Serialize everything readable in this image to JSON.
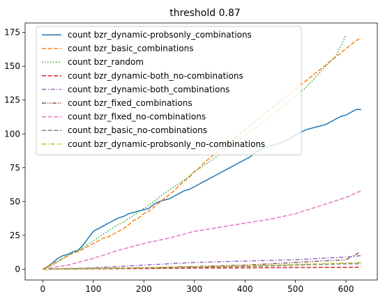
{
  "chart_data": {
    "type": "line",
    "title": "threshold 0.87",
    "xlabel": "",
    "ylabel": "",
    "xlim": [
      -35,
      662
    ],
    "ylim": [
      -8,
      182
    ],
    "xticks": [
      0,
      100,
      200,
      300,
      400,
      500,
      600
    ],
    "yticks": [
      0,
      25,
      50,
      75,
      100,
      125,
      150,
      175
    ],
    "grid": false,
    "legend_position": "top-left",
    "series": [
      {
        "name": "count bzr_dynamic-probsonly_combinations",
        "color": "#1f77b4",
        "dash": "solid",
        "points": [
          [
            0,
            0
          ],
          [
            10,
            2
          ],
          [
            20,
            5
          ],
          [
            30,
            8
          ],
          [
            40,
            10
          ],
          [
            50,
            11
          ],
          [
            60,
            13
          ],
          [
            70,
            14
          ],
          [
            80,
            18
          ],
          [
            90,
            23
          ],
          [
            100,
            28
          ],
          [
            110,
            30
          ],
          [
            120,
            32
          ],
          [
            130,
            34
          ],
          [
            140,
            36
          ],
          [
            150,
            38
          ],
          [
            160,
            39
          ],
          [
            170,
            41
          ],
          [
            180,
            42
          ],
          [
            190,
            43
          ],
          [
            200,
            44
          ],
          [
            210,
            45
          ],
          [
            220,
            48
          ],
          [
            230,
            50
          ],
          [
            240,
            51
          ],
          [
            250,
            52
          ],
          [
            260,
            54
          ],
          [
            270,
            56
          ],
          [
            280,
            58
          ],
          [
            290,
            59
          ],
          [
            300,
            61
          ],
          [
            310,
            63
          ],
          [
            320,
            65
          ],
          [
            330,
            67
          ],
          [
            340,
            69
          ],
          [
            350,
            71
          ],
          [
            360,
            73
          ],
          [
            370,
            75
          ],
          [
            380,
            77
          ],
          [
            390,
            79
          ],
          [
            400,
            81
          ],
          [
            410,
            83
          ],
          [
            420,
            86
          ],
          [
            430,
            88
          ],
          [
            440,
            90
          ],
          [
            450,
            91
          ],
          [
            460,
            92
          ],
          [
            470,
            93
          ],
          [
            480,
            95
          ],
          [
            490,
            97
          ],
          [
            500,
            99
          ],
          [
            510,
            101
          ],
          [
            520,
            103
          ],
          [
            530,
            104
          ],
          [
            540,
            105
          ],
          [
            550,
            106
          ],
          [
            560,
            107
          ],
          [
            570,
            109
          ],
          [
            580,
            111
          ],
          [
            590,
            113
          ],
          [
            600,
            114
          ],
          [
            610,
            116
          ],
          [
            620,
            118
          ],
          [
            630,
            118
          ]
        ]
      },
      {
        "name": "count bzr_basic_combinations",
        "color": "#ff7f0e",
        "dash": "dashed",
        "points": [
          [
            0,
            0
          ],
          [
            10,
            2
          ],
          [
            20,
            4
          ],
          [
            30,
            6
          ],
          [
            40,
            8
          ],
          [
            50,
            10
          ],
          [
            60,
            12
          ],
          [
            70,
            13
          ],
          [
            80,
            15
          ],
          [
            90,
            17
          ],
          [
            100,
            19
          ],
          [
            110,
            21
          ],
          [
            120,
            23
          ],
          [
            130,
            24
          ],
          [
            140,
            26
          ],
          [
            150,
            28
          ],
          [
            160,
            30
          ],
          [
            170,
            33
          ],
          [
            180,
            36
          ],
          [
            190,
            38
          ],
          [
            200,
            41
          ],
          [
            210,
            43
          ],
          [
            220,
            46
          ],
          [
            230,
            49
          ],
          [
            240,
            52
          ],
          [
            250,
            55
          ],
          [
            260,
            58
          ],
          [
            270,
            62
          ],
          [
            280,
            65
          ],
          [
            290,
            68
          ],
          [
            300,
            72
          ],
          [
            310,
            75
          ],
          [
            320,
            79
          ],
          [
            330,
            82
          ],
          [
            340,
            85
          ],
          [
            350,
            88
          ],
          [
            360,
            91
          ],
          [
            370,
            94
          ],
          [
            380,
            97
          ],
          [
            390,
            100
          ],
          [
            400,
            103
          ],
          [
            410,
            106
          ],
          [
            420,
            109
          ],
          [
            430,
            112
          ],
          [
            440,
            115
          ],
          [
            450,
            118
          ],
          [
            460,
            121
          ],
          [
            470,
            124
          ],
          [
            480,
            127
          ],
          [
            490,
            130
          ],
          [
            500,
            133
          ],
          [
            510,
            136
          ],
          [
            520,
            139
          ],
          [
            530,
            142
          ],
          [
            540,
            145
          ],
          [
            550,
            148
          ],
          [
            560,
            151
          ],
          [
            570,
            154
          ],
          [
            580,
            157
          ],
          [
            590,
            160
          ],
          [
            600,
            163
          ],
          [
            610,
            166
          ],
          [
            620,
            169
          ],
          [
            630,
            171
          ]
        ]
      },
      {
        "name": "count bzr_random",
        "color": "#2ca02c",
        "dash": "dotted",
        "points": [
          [
            0,
            0
          ],
          [
            20,
            3
          ],
          [
            40,
            8
          ],
          [
            60,
            12
          ],
          [
            80,
            16
          ],
          [
            100,
            21
          ],
          [
            120,
            26
          ],
          [
            140,
            31
          ],
          [
            160,
            35
          ],
          [
            180,
            40
          ],
          [
            200,
            45
          ],
          [
            220,
            50
          ],
          [
            240,
            56
          ],
          [
            260,
            61
          ],
          [
            280,
            66
          ],
          [
            300,
            72
          ],
          [
            320,
            77
          ],
          [
            340,
            82
          ],
          [
            360,
            88
          ],
          [
            380,
            93
          ],
          [
            400,
            99
          ],
          [
            420,
            104
          ],
          [
            440,
            110
          ],
          [
            460,
            116
          ],
          [
            480,
            122
          ],
          [
            500,
            128
          ],
          [
            520,
            134
          ],
          [
            540,
            142
          ],
          [
            560,
            150
          ],
          [
            580,
            158
          ],
          [
            590,
            165
          ],
          [
            600,
            173
          ]
        ]
      },
      {
        "name": "count bzr_dynamic-both_no-combinations",
        "color": "#d62728",
        "dash": "dashed",
        "points": [
          [
            0,
            0
          ],
          [
            100,
            0.3
          ],
          [
            200,
            0.5
          ],
          [
            300,
            0.8
          ],
          [
            400,
            1
          ],
          [
            500,
            1.2
          ],
          [
            600,
            1.4
          ],
          [
            630,
            1.5
          ]
        ]
      },
      {
        "name": "count bzr_dynamic-both_combinations",
        "color": "#9467bd",
        "dash": "dashdot",
        "points": [
          [
            0,
            0
          ],
          [
            100,
            1
          ],
          [
            200,
            3
          ],
          [
            300,
            5
          ],
          [
            400,
            6
          ],
          [
            500,
            7
          ],
          [
            600,
            9
          ],
          [
            630,
            10
          ]
        ]
      },
      {
        "name": "count bzr_fixed_combinations",
        "color": "#8c564b",
        "dash": "dashdotdot",
        "points": [
          [
            0,
            0
          ],
          [
            100,
            0.5
          ],
          [
            200,
            1
          ],
          [
            300,
            2
          ],
          [
            400,
            3
          ],
          [
            500,
            5
          ],
          [
            600,
            7
          ],
          [
            625,
            12
          ]
        ]
      },
      {
        "name": "count bzr_fixed_no-combinations",
        "color": "#e377c2",
        "dash": "dashed",
        "points": [
          [
            0,
            0
          ],
          [
            50,
            3
          ],
          [
            100,
            8
          ],
          [
            150,
            14
          ],
          [
            200,
            19
          ],
          [
            250,
            23
          ],
          [
            300,
            28
          ],
          [
            350,
            31
          ],
          [
            400,
            34
          ],
          [
            450,
            37
          ],
          [
            500,
            41
          ],
          [
            550,
            47
          ],
          [
            600,
            53
          ],
          [
            630,
            58
          ]
        ]
      },
      {
        "name": "count bzr_basic_no-combinations",
        "color": "#7f7f7f",
        "dash": "dashed",
        "points": [
          [
            0,
            0
          ],
          [
            100,
            0.5
          ],
          [
            200,
            1
          ],
          [
            300,
            1.5
          ],
          [
            400,
            2
          ],
          [
            500,
            3
          ],
          [
            600,
            4
          ],
          [
            630,
            4
          ]
        ]
      },
      {
        "name": "count bzr_dynamic-probsonly_no-combinations",
        "color": "#bcbd22",
        "dash": "dashdot",
        "points": [
          [
            0,
            0
          ],
          [
            100,
            0.5
          ],
          [
            200,
            1
          ],
          [
            300,
            1.8
          ],
          [
            400,
            2.5
          ],
          [
            500,
            3.5
          ],
          [
            600,
            4.5
          ],
          [
            630,
            5
          ]
        ]
      }
    ]
  }
}
